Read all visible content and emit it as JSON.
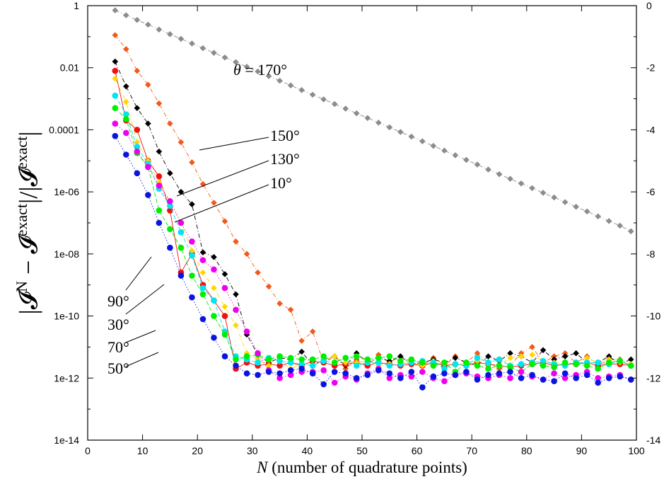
{
  "chart_data": {
    "type": "scatter",
    "title": "",
    "xlabel": "N (number of quadrature points)",
    "ylabel": "|𝓘ᴺ − 𝓘ᵉˣᵃᶜᵗ| / |𝓘ᵉˣᵃᶜᵗ|",
    "ylabel_parts": [
      "|𝓘",
      "N",
      " − 𝓘",
      "exact",
      "|/|𝓘",
      "exact",
      "|"
    ],
    "xlabel_parts": [
      "N",
      " (number of quadrature points)"
    ],
    "xlim": [
      0,
      100
    ],
    "ylim": [
      -14,
      0
    ],
    "y_scale": "log10",
    "x_ticks": [
      "0",
      "10",
      "20",
      "30",
      "40",
      "50",
      "60",
      "70",
      "80",
      "90",
      "100"
    ],
    "y_ticks_left": [
      "1e-14",
      "1e-12",
      "1e-10",
      "1e-08",
      "1e-06",
      "0.0001",
      "0.01",
      "1"
    ],
    "y_ticks_right": [
      "-14",
      "-12",
      "-10",
      "-8",
      "-6",
      "-4",
      "-2",
      "0"
    ],
    "grid": false,
    "legend": "none (annotation labels with leader lines)",
    "annotations": [
      {
        "text": "θ = 170°",
        "series": "170"
      },
      {
        "text": "150°",
        "series": "150"
      },
      {
        "text": "130°",
        "series": "130"
      },
      {
        "text": "10°",
        "series": "10"
      },
      {
        "text": "90°",
        "series": "90"
      },
      {
        "text": "30°",
        "series": "30"
      },
      {
        "text": "70°",
        "series": "70"
      },
      {
        "text": "50°",
        "series": "50"
      }
    ],
    "x": [
      5,
      7,
      9,
      11,
      13,
      15,
      17,
      19,
      21,
      23,
      25,
      27,
      29,
      31,
      33,
      35,
      37,
      39,
      41,
      43,
      45,
      47,
      49,
      51,
      53,
      55,
      57,
      59,
      61,
      63,
      65,
      67,
      69,
      71,
      73,
      75,
      77,
      79,
      81,
      83,
      85,
      87,
      89,
      91,
      93,
      95,
      97,
      99
    ],
    "series": [
      {
        "id": "170",
        "color": "#8c8c8c",
        "marker": "diamond",
        "line": "dashdot",
        "values": [
          -0.15,
          -0.31,
          -0.46,
          -0.61,
          -0.77,
          -0.92,
          -1.07,
          -1.22,
          -1.37,
          -1.52,
          -1.67,
          -1.82,
          -1.97,
          -2.12,
          -2.27,
          -2.42,
          -2.57,
          -2.72,
          -2.87,
          -3.02,
          -3.17,
          -3.32,
          -3.47,
          -3.62,
          -3.77,
          -3.92,
          -4.07,
          -4.22,
          -4.37,
          -4.52,
          -4.67,
          -4.82,
          -4.97,
          -5.12,
          -5.28,
          -5.43,
          -5.58,
          -5.73,
          -5.88,
          -6.03,
          -6.18,
          -6.33,
          -6.48,
          -6.63,
          -6.79,
          -6.94,
          -7.09,
          -7.27
        ]
      },
      {
        "id": "150",
        "color": "#f05a1a",
        "marker": "diamond",
        "line": "dashdot",
        "values": [
          -0.95,
          -1.4,
          -2.1,
          -2.55,
          -3.15,
          -3.8,
          -4.4,
          -5.05,
          -5.75,
          -6.35,
          -6.95,
          -7.6,
          -8.0,
          -8.6,
          -9.05,
          -9.6,
          -9.8,
          -10.8,
          -10.5,
          -11.5,
          -11.3,
          -11.7,
          -11.4,
          -11.6,
          -11.25,
          -11.5,
          -11.3,
          -11.5,
          -11.6,
          -11.35,
          -11.6,
          -11.3,
          -11.5,
          -11.2,
          -11.5,
          -11.7,
          -11.6,
          -11.2,
          -11.0,
          -11.5,
          -11.3,
          -11.2,
          -11.5,
          -11.3,
          -11.6,
          -11.4,
          -11.4,
          -11.6
        ]
      },
      {
        "id": "130",
        "color": "#000000",
        "marker": "diamond",
        "line": "dashdot",
        "values": [
          -1.8,
          -2.6,
          -3.3,
          -3.8,
          -4.7,
          -5.4,
          -6.0,
          -6.4,
          -7.95,
          -8.1,
          -8.65,
          -9.3,
          -10.6,
          -11.25,
          -11.5,
          -11.35,
          -11.4,
          -11.15,
          -11.6,
          -11.4,
          -11.3,
          -11.6,
          -11.2,
          -11.5,
          -11.35,
          -11.45,
          -11.3,
          -11.55,
          -11.5,
          -11.4,
          -11.5,
          -11.35,
          -11.5,
          -11.6,
          -11.3,
          -11.45,
          -11.2,
          -11.3,
          -11.5,
          -11.1,
          -11.4,
          -11.3,
          -11.2,
          -11.5,
          -11.5,
          -11.3,
          -11.55,
          -11.4
        ]
      },
      {
        "id": "10",
        "color": "#ee1111",
        "marker": "circle",
        "line": "solid",
        "values": [
          -2.1,
          -3.7,
          -4.0,
          -5.0,
          -5.5,
          -6.6,
          -8.6,
          -8.0,
          -9.0,
          -9.5,
          -10.0,
          -11.7,
          -11.5,
          -11.6,
          -11.55,
          -11.6,
          -11.5,
          -11.6,
          -11.45,
          -11.5,
          -11.6,
          -11.55,
          -11.5,
          -11.6,
          -11.5,
          -11.55,
          -11.6,
          -11.55,
          -11.6,
          -11.5,
          -11.6,
          -11.55,
          -11.6,
          -11.5,
          -11.55,
          -11.6,
          -11.65,
          -11.6,
          -11.55,
          -11.5,
          -11.6,
          -11.55,
          -11.55,
          -11.5,
          -11.6,
          -11.55,
          -11.55,
          -11.6
        ]
      },
      {
        "id": "90",
        "color": "#ffd700",
        "marker": "diamond",
        "line": "dashdot",
        "values": [
          -2.35,
          -3.1,
          -4.4,
          -5.0,
          -5.7,
          -6.3,
          -7.0,
          -7.9,
          -8.6,
          -9.1,
          -9.7,
          -10.3,
          -11.2,
          -11.4,
          -11.6,
          -11.45,
          -11.7,
          -11.55,
          -11.6,
          -11.4,
          -11.3,
          -11.5,
          -11.5,
          -11.45,
          -11.6,
          -11.55,
          -11.5,
          -11.5,
          -11.6,
          -11.45,
          -11.55,
          -11.6,
          -11.5,
          -11.45,
          -11.55,
          -11.6,
          -11.35,
          -11.3,
          -11.25,
          -11.45,
          -11.5,
          -11.55,
          -11.5,
          -11.35,
          -11.5,
          -11.4,
          -11.5,
          -11.55
        ]
      },
      {
        "id": "30",
        "color": "#00e5ee",
        "marker": "circle",
        "line": "dashed",
        "values": [
          -2.9,
          -3.5,
          -4.55,
          -5.1,
          -5.9,
          -6.45,
          -7.3,
          -8.05,
          -9.1,
          -9.5,
          -10.5,
          -11.3,
          -11.4,
          -11.5,
          -11.35,
          -11.45,
          -11.5,
          -11.55,
          -11.6,
          -11.45,
          -11.5,
          -11.35,
          -11.6,
          -11.5,
          -11.5,
          -11.6,
          -11.55,
          -11.5,
          -11.45,
          -11.5,
          -11.7,
          -11.55,
          -11.6,
          -11.35,
          -11.5,
          -11.4,
          -11.6,
          -11.55,
          -11.5,
          -11.45,
          -11.55,
          -11.6,
          -11.5,
          -11.5,
          -11.5,
          -11.55,
          -11.45,
          -11.6
        ]
      },
      {
        "id": "70",
        "color": "#00ee00",
        "marker": "circle",
        "line": "dashed",
        "values": [
          -3.3,
          -3.65,
          -4.75,
          -5.2,
          -6.6,
          -7.2,
          -7.8,
          -8.7,
          -9.3,
          -10.0,
          -10.6,
          -11.4,
          -11.3,
          -11.25,
          -11.4,
          -11.3,
          -11.35,
          -11.4,
          -11.4,
          -11.3,
          -11.5,
          -11.35,
          -11.3,
          -11.4,
          -11.35,
          -11.3,
          -11.45,
          -11.4,
          -11.5,
          -11.6,
          -11.5,
          -11.8,
          -11.5,
          -11.6,
          -11.7,
          -11.6,
          -11.65,
          -11.8,
          -11.55,
          -11.6,
          -11.65,
          -11.5,
          -11.55,
          -11.6,
          -11.7,
          -11.5,
          -11.45,
          -11.6
        ]
      },
      {
        "id": "50",
        "color": "#ee00ee",
        "marker": "circle",
        "line": "dotted",
        "values": [
          -3.8,
          -4.1,
          -4.7,
          -5.2,
          -5.8,
          -6.3,
          -7.0,
          -7.6,
          -8.2,
          -8.5,
          -9.1,
          -9.8,
          -10.5,
          -11.2,
          -11.75,
          -12.0,
          -11.9,
          -11.8,
          -11.8,
          -11.75,
          -12.15,
          -11.95,
          -12.05,
          -11.85,
          -11.7,
          -12.0,
          -11.9,
          -11.95,
          -11.8,
          -12.0,
          -12.1,
          -11.9,
          -11.85,
          -11.95,
          -12.0,
          -11.9,
          -12.0,
          -11.8,
          -11.95,
          -12.05,
          -11.85,
          -12.0,
          -11.9,
          -11.8,
          -12.0,
          -11.95,
          -11.9,
          -12.05
        ]
      },
      {
        "id": "50b",
        "color": "#0a14e0",
        "marker": "circle",
        "line": "dotted",
        "values": [
          -4.2,
          -4.8,
          -5.4,
          -6.1,
          -7.0,
          -7.8,
          -8.7,
          -9.4,
          -10.1,
          -10.7,
          -11.3,
          -11.6,
          -11.85,
          -11.9,
          -11.8,
          -11.85,
          -11.75,
          -11.7,
          -11.85,
          -12.2,
          -11.8,
          -11.85,
          -12.0,
          -11.9,
          -11.75,
          -11.85,
          -12.0,
          -11.8,
          -12.3,
          -11.95,
          -11.85,
          -11.9,
          -11.8,
          -12.05,
          -11.9,
          -11.85,
          -11.8,
          -12.0,
          -11.9,
          -12.05,
          -12.1,
          -11.85,
          -12.0,
          -11.9,
          -12.15,
          -12.0,
          -11.95,
          -12.05
        ]
      }
    ]
  }
}
